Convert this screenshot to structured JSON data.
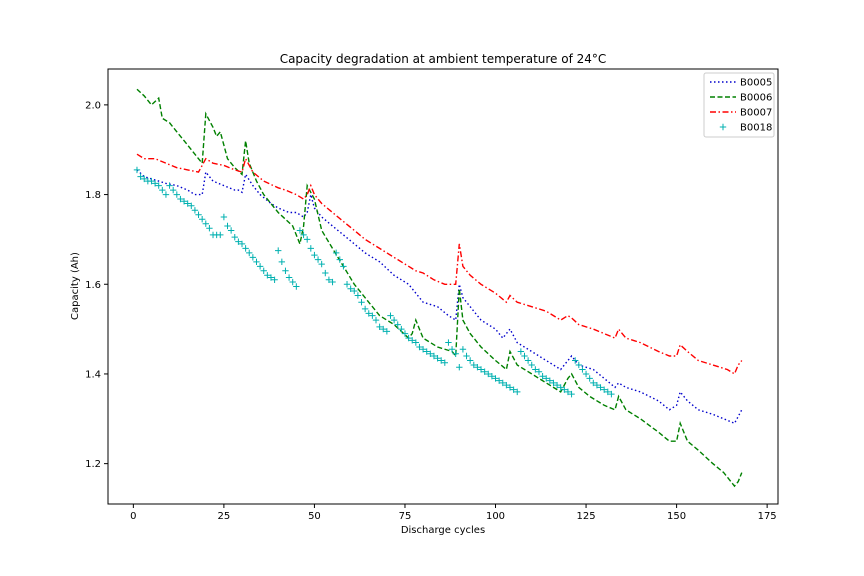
{
  "chart_data": {
    "type": "line",
    "title": "Capacity degradation at ambient temperature of 24°C",
    "xlabel": "Discharge cycles",
    "ylabel": "Capacity (Ah)",
    "xlim": [
      -7,
      178
    ],
    "ylim": [
      1.11,
      2.08
    ],
    "xticks": [
      0,
      25,
      50,
      75,
      100,
      125,
      150,
      175
    ],
    "yticks": [
      1.2,
      1.4,
      1.6,
      1.8,
      2.0
    ],
    "ytick_labels": [
      "1.2",
      "1.4",
      "1.6",
      "1.8",
      "2.0"
    ],
    "grid": false,
    "legend_position": "upper-right",
    "series": [
      {
        "name": "B0005",
        "style": "dotted",
        "color": "#0000cc",
        "x": [
          1,
          3,
          5,
          7,
          9,
          12,
          15,
          17,
          19,
          20,
          22,
          25,
          28,
          29,
          30,
          31,
          33,
          35,
          38,
          40,
          43,
          45,
          47,
          48,
          49,
          50,
          52,
          55,
          58,
          61,
          64,
          68,
          72,
          76,
          77,
          78,
          80,
          84,
          87,
          89,
          90,
          91,
          93,
          96,
          100,
          102,
          103,
          104,
          106,
          110,
          114,
          118,
          120,
          121,
          123,
          127,
          130,
          133,
          134,
          136,
          140,
          145,
          148,
          150,
          151,
          153,
          156,
          160,
          163,
          166,
          168
        ],
        "y": [
          1.855,
          1.84,
          1.835,
          1.83,
          1.825,
          1.82,
          1.81,
          1.8,
          1.8,
          1.85,
          1.83,
          1.82,
          1.81,
          1.81,
          1.805,
          1.845,
          1.82,
          1.8,
          1.78,
          1.77,
          1.76,
          1.76,
          1.75,
          1.76,
          1.8,
          1.77,
          1.75,
          1.73,
          1.71,
          1.69,
          1.67,
          1.65,
          1.62,
          1.6,
          1.59,
          1.58,
          1.56,
          1.55,
          1.53,
          1.52,
          1.6,
          1.57,
          1.55,
          1.52,
          1.5,
          1.48,
          1.49,
          1.5,
          1.47,
          1.45,
          1.43,
          1.41,
          1.43,
          1.44,
          1.42,
          1.41,
          1.39,
          1.37,
          1.38,
          1.37,
          1.36,
          1.34,
          1.32,
          1.33,
          1.36,
          1.34,
          1.32,
          1.31,
          1.3,
          1.29,
          1.32
        ]
      },
      {
        "name": "B0006",
        "style": "dashed",
        "color": "#008000",
        "x": [
          1,
          3,
          5,
          7,
          8,
          10,
          12,
          15,
          18,
          19,
          20,
          22,
          23,
          24,
          26,
          28,
          30,
          31,
          32,
          34,
          36,
          40,
          44,
          46,
          47,
          48,
          50,
          52,
          55,
          58,
          61,
          64,
          68,
          72,
          76,
          77,
          78,
          80,
          84,
          88,
          89,
          90,
          91,
          93,
          96,
          100,
          103,
          104,
          106,
          110,
          114,
          118,
          120,
          121,
          123,
          126,
          130,
          133,
          134,
          136,
          140,
          145,
          148,
          150,
          151,
          153,
          156,
          160,
          163,
          165,
          166,
          167,
          168
        ],
        "y": [
          2.035,
          2.02,
          2.0,
          2.015,
          1.97,
          1.96,
          1.94,
          1.91,
          1.88,
          1.87,
          1.98,
          1.95,
          1.93,
          1.94,
          1.88,
          1.86,
          1.845,
          1.92,
          1.87,
          1.83,
          1.8,
          1.76,
          1.73,
          1.69,
          1.73,
          1.82,
          1.79,
          1.72,
          1.68,
          1.64,
          1.6,
          1.57,
          1.53,
          1.51,
          1.48,
          1.49,
          1.52,
          1.48,
          1.46,
          1.45,
          1.44,
          1.59,
          1.52,
          1.49,
          1.46,
          1.43,
          1.41,
          1.45,
          1.42,
          1.4,
          1.38,
          1.36,
          1.39,
          1.4,
          1.37,
          1.35,
          1.33,
          1.32,
          1.35,
          1.32,
          1.3,
          1.27,
          1.25,
          1.25,
          1.29,
          1.25,
          1.23,
          1.2,
          1.18,
          1.16,
          1.15,
          1.16,
          1.18
        ]
      },
      {
        "name": "B0007",
        "style": "dashdot",
        "color": "#ff0000",
        "x": [
          1,
          3,
          6,
          9,
          12,
          15,
          18,
          20,
          22,
          25,
          28,
          30,
          31,
          33,
          36,
          40,
          42,
          45,
          47,
          48,
          49,
          50,
          52,
          55,
          58,
          61,
          64,
          68,
          72,
          76,
          78,
          80,
          83,
          86,
          89,
          90,
          91,
          93,
          96,
          100,
          103,
          104,
          106,
          110,
          114,
          118,
          120,
          121,
          123,
          127,
          130,
          133,
          134,
          136,
          140,
          145,
          148,
          150,
          151,
          153,
          156,
          160,
          164,
          166,
          167,
          168
        ],
        "y": [
          1.89,
          1.88,
          1.88,
          1.87,
          1.86,
          1.855,
          1.85,
          1.88,
          1.87,
          1.865,
          1.855,
          1.85,
          1.88,
          1.85,
          1.83,
          1.815,
          1.81,
          1.8,
          1.79,
          1.8,
          1.82,
          1.8,
          1.78,
          1.76,
          1.74,
          1.72,
          1.7,
          1.68,
          1.66,
          1.64,
          1.63,
          1.625,
          1.61,
          1.6,
          1.6,
          1.69,
          1.64,
          1.62,
          1.6,
          1.58,
          1.56,
          1.575,
          1.56,
          1.55,
          1.54,
          1.52,
          1.53,
          1.525,
          1.51,
          1.5,
          1.49,
          1.48,
          1.5,
          1.48,
          1.47,
          1.45,
          1.44,
          1.44,
          1.465,
          1.45,
          1.43,
          1.42,
          1.41,
          1.4,
          1.42,
          1.43
        ]
      },
      {
        "name": "B0018",
        "style": "plus",
        "color": "#00b0b0",
        "x": [
          1,
          2,
          3,
          4,
          5,
          6,
          7,
          8,
          9,
          10,
          11,
          12,
          13,
          14,
          15,
          16,
          17,
          18,
          19,
          20,
          21,
          22,
          23,
          24,
          25,
          26,
          27,
          28,
          29,
          30,
          31,
          32,
          33,
          34,
          35,
          36,
          37,
          38,
          39,
          40,
          41,
          42,
          43,
          44,
          45,
          46,
          47,
          48,
          49,
          50,
          51,
          52,
          53,
          54,
          55,
          56,
          57,
          58,
          59,
          60,
          61,
          62,
          63,
          64,
          65,
          66,
          67,
          68,
          69,
          70,
          71,
          72,
          73,
          74,
          75,
          76,
          77,
          78,
          79,
          80,
          81,
          82,
          83,
          84,
          85,
          86,
          87,
          88,
          89,
          90,
          91,
          92,
          93,
          94,
          95,
          96,
          97,
          98,
          99,
          100,
          101,
          102,
          103,
          104,
          105,
          106,
          107,
          108,
          109,
          110,
          111,
          112,
          113,
          114,
          115,
          116,
          117,
          118,
          119,
          120,
          121,
          122,
          123,
          124,
          125,
          126,
          127,
          128,
          129,
          130,
          131,
          132
        ],
        "y": [
          1.855,
          1.84,
          1.835,
          1.83,
          1.83,
          1.825,
          1.82,
          1.81,
          1.8,
          1.82,
          1.81,
          1.8,
          1.79,
          1.785,
          1.78,
          1.775,
          1.765,
          1.755,
          1.745,
          1.735,
          1.725,
          1.71,
          1.71,
          1.71,
          1.75,
          1.73,
          1.72,
          1.705,
          1.695,
          1.69,
          1.68,
          1.67,
          1.66,
          1.65,
          1.64,
          1.63,
          1.62,
          1.615,
          1.61,
          1.675,
          1.65,
          1.63,
          1.615,
          1.605,
          1.595,
          1.72,
          1.71,
          1.7,
          1.68,
          1.665,
          1.655,
          1.645,
          1.625,
          1.61,
          1.605,
          1.67,
          1.655,
          1.64,
          1.6,
          1.59,
          1.585,
          1.575,
          1.56,
          1.545,
          1.535,
          1.53,
          1.52,
          1.505,
          1.5,
          1.495,
          1.53,
          1.52,
          1.51,
          1.5,
          1.49,
          1.48,
          1.475,
          1.47,
          1.46,
          1.455,
          1.45,
          1.445,
          1.44,
          1.435,
          1.43,
          1.425,
          1.47,
          1.455,
          1.445,
          1.415,
          1.455,
          1.44,
          1.43,
          1.42,
          1.415,
          1.41,
          1.405,
          1.4,
          1.395,
          1.39,
          1.385,
          1.38,
          1.375,
          1.37,
          1.365,
          1.36,
          1.45,
          1.44,
          1.43,
          1.42,
          1.41,
          1.405,
          1.395,
          1.39,
          1.385,
          1.38,
          1.375,
          1.37,
          1.365,
          1.36,
          1.355,
          1.43,
          1.42,
          1.41,
          1.4,
          1.39,
          1.38,
          1.375,
          1.37,
          1.365,
          1.36,
          1.355
        ]
      }
    ]
  }
}
